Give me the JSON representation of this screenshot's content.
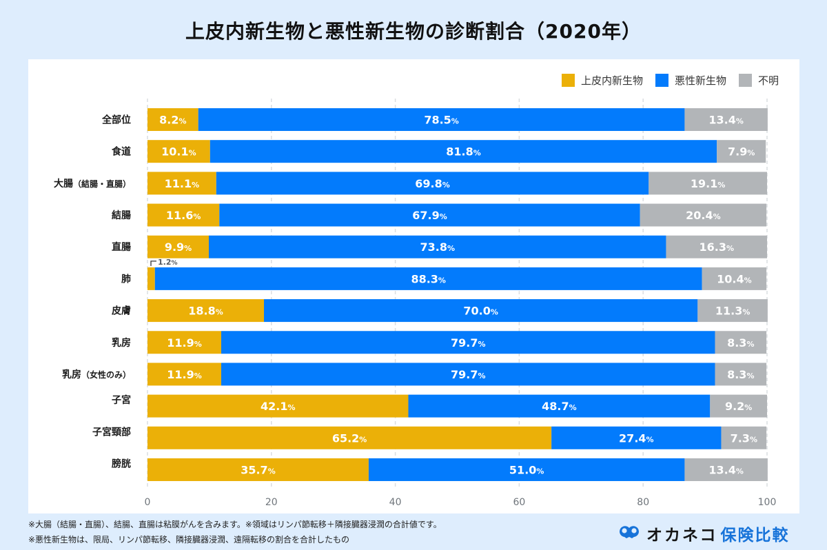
{
  "title": "上皮内新生物と悪性新生物の診断割合（2020年）",
  "legend": [
    {
      "label": "上皮内新生物",
      "color": "#ebb008"
    },
    {
      "label": "悪性新生物",
      "color": "#037bfc"
    },
    {
      "label": "不明",
      "color": "#b2b5b8"
    }
  ],
  "chart_data": {
    "type": "bar",
    "orientation": "horizontal",
    "stacked": true,
    "title": "上皮内新生物と悪性新生物の診断割合（2020年）",
    "xlabel": "",
    "ylabel": "",
    "xlim": [
      0,
      100
    ],
    "xticks": [
      0,
      20,
      40,
      60,
      80,
      100
    ],
    "grid": "vertical-dashed",
    "legend_position": "top-right",
    "value_suffix": "%",
    "categories": [
      "全部位",
      "食道",
      "大腸（結腸・直腸）",
      "結腸",
      "直腸",
      "肺",
      "皮膚",
      "乳房",
      "乳房（女性のみ）",
      "子宮",
      "子宮頸部",
      "膀胱"
    ],
    "series": [
      {
        "name": "上皮内新生物",
        "color": "#ebb008",
        "values": [
          8.2,
          10.1,
          11.1,
          11.6,
          9.9,
          1.2,
          18.8,
          11.9,
          11.9,
          42.1,
          65.2,
          35.7
        ]
      },
      {
        "name": "悪性新生物",
        "color": "#037bfc",
        "values": [
          78.5,
          81.8,
          69.8,
          67.9,
          73.8,
          88.3,
          70.0,
          79.7,
          79.7,
          48.7,
          27.4,
          51.0
        ]
      },
      {
        "name": "不明",
        "color": "#b2b5b8",
        "values": [
          13.4,
          7.9,
          19.1,
          20.4,
          16.3,
          10.4,
          11.3,
          8.3,
          8.3,
          9.2,
          7.3,
          13.4
        ]
      }
    ],
    "annotations": [
      {
        "category": "肺",
        "series": "上皮内新生物",
        "text": "1.2%",
        "placement": "above-bar-callout"
      }
    ]
  },
  "notes": [
    "※大腸（結腸・直腸）、結腸、直腸は粘膜がんを含みます。※領域はリンパ節転移＋隣接臓器浸潤の合計値です。",
    "※悪性新生物は、限局、リンパ節転移、隣接臓器浸潤、遠隔転移の割合を合計したもの"
  ],
  "logo": {
    "kana": "オカネコ",
    "kanji": "保険比較",
    "icon": "owl-eyes-icon"
  }
}
